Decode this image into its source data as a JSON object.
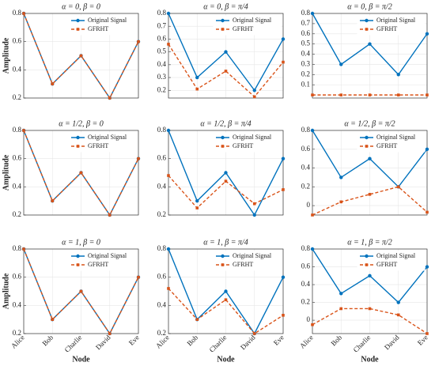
{
  "chart_data": [
    {
      "type": "line",
      "title": "α = 0, β = 0",
      "ylabel": "Amplitude",
      "categories": [
        null,
        null,
        null,
        null,
        null
      ],
      "series": [
        {
          "name": "Original Signal",
          "color": "#0072bd",
          "values": [
            0.8,
            0.3,
            0.5,
            0.2,
            0.6
          ]
        },
        {
          "name": "GFRHT",
          "color": "#d95319",
          "values": [
            0.8,
            0.3,
            0.5,
            0.2,
            0.6
          ]
        }
      ],
      "ylim": [
        0.2,
        0.8
      ],
      "yticks": [
        0.2,
        0.4,
        0.6,
        0.8
      ],
      "grid": true,
      "legend": "upper right"
    },
    {
      "type": "line",
      "title": "α = 0, β = π/4",
      "categories": [
        null,
        null,
        null,
        null,
        null
      ],
      "series": [
        {
          "name": "Original Signal",
          "color": "#0072bd",
          "values": [
            0.8,
            0.3,
            0.5,
            0.2,
            0.6
          ]
        },
        {
          "name": "GFRHT",
          "color": "#d95319",
          "values": [
            0.56,
            0.21,
            0.35,
            0.15,
            0.42
          ]
        }
      ],
      "ylim": [
        0.14,
        0.8
      ],
      "yticks": [
        0.2,
        0.3,
        0.4,
        0.5,
        0.6,
        0.7,
        0.8
      ],
      "grid": true,
      "legend": "upper right"
    },
    {
      "type": "line",
      "title": "α = 0, β = π/2",
      "categories": [
        null,
        null,
        null,
        null,
        null
      ],
      "series": [
        {
          "name": "Original Signal",
          "color": "#0072bd",
          "values": [
            0.8,
            0.3,
            0.5,
            0.2,
            0.6
          ]
        },
        {
          "name": "GFRHT",
          "color": "#d95319",
          "values": [
            0,
            0,
            0,
            0,
            0
          ]
        }
      ],
      "ylim": [
        -0.03,
        0.8
      ],
      "yticks": [
        0.1,
        0.2,
        0.3,
        0.4,
        0.5,
        0.6,
        0.7,
        0.8
      ],
      "grid": true,
      "legend": "upper right"
    },
    {
      "type": "line",
      "title": "α = 1/2, β = 0",
      "ylabel": "Amplitude",
      "categories": [
        null,
        null,
        null,
        null,
        null
      ],
      "series": [
        {
          "name": "Original Signal",
          "color": "#0072bd",
          "values": [
            0.8,
            0.3,
            0.5,
            0.2,
            0.6
          ]
        },
        {
          "name": "GFRHT",
          "color": "#d95319",
          "values": [
            0.8,
            0.3,
            0.5,
            0.2,
            0.6
          ]
        }
      ],
      "ylim": [
        0.2,
        0.8
      ],
      "yticks": [
        0.2,
        0.4,
        0.6,
        0.8
      ],
      "grid": true,
      "legend": "upper right"
    },
    {
      "type": "line",
      "title": "α = 1/2, β = π/4",
      "categories": [
        null,
        null,
        null,
        null,
        null
      ],
      "series": [
        {
          "name": "Original Signal",
          "color": "#0072bd",
          "values": [
            0.8,
            0.3,
            0.5,
            0.2,
            0.6
          ]
        },
        {
          "name": "GFRHT",
          "color": "#d95319",
          "values": [
            0.48,
            0.25,
            0.44,
            0.28,
            0.38
          ]
        }
      ],
      "ylim": [
        0.2,
        0.8
      ],
      "yticks": [
        0.2,
        0.4,
        0.6,
        0.8
      ],
      "grid": true,
      "legend": "upper right"
    },
    {
      "type": "line",
      "title": "α = 1/2, β = π/2",
      "categories": [
        null,
        null,
        null,
        null,
        null
      ],
      "series": [
        {
          "name": "Original Signal",
          "color": "#0072bd",
          "values": [
            0.8,
            0.3,
            0.5,
            0.2,
            0.6
          ]
        },
        {
          "name": "GFRHT",
          "color": "#d95319",
          "values": [
            -0.1,
            0.04,
            0.12,
            0.2,
            -0.07
          ]
        }
      ],
      "ylim": [
        -0.1,
        0.8
      ],
      "yticks": [
        0,
        0.2,
        0.4,
        0.6,
        0.8
      ],
      "grid": true,
      "legend": "upper right"
    },
    {
      "type": "line",
      "title": "α = 1, β = 0",
      "ylabel": "Amplitude",
      "xlabel": "Node",
      "categories": [
        "Alice",
        "Bob",
        "Charlie",
        "David",
        "Eve"
      ],
      "series": [
        {
          "name": "Original Signal",
          "color": "#0072bd",
          "values": [
            0.8,
            0.3,
            0.5,
            0.2,
            0.6
          ]
        },
        {
          "name": "GFRHT",
          "color": "#d95319",
          "values": [
            0.8,
            0.3,
            0.5,
            0.2,
            0.6
          ]
        }
      ],
      "ylim": [
        0.2,
        0.8
      ],
      "yticks": [
        0.2,
        0.4,
        0.6,
        0.8
      ],
      "grid": true,
      "legend": "upper right"
    },
    {
      "type": "line",
      "title": "α = 1, β = π/4",
      "xlabel": "Node",
      "categories": [
        "Alice",
        "Bob",
        "Charlie",
        "David",
        "Eve"
      ],
      "series": [
        {
          "name": "Original Signal",
          "color": "#0072bd",
          "values": [
            0.8,
            0.3,
            0.5,
            0.2,
            0.6
          ]
        },
        {
          "name": "GFRHT",
          "color": "#d95319",
          "values": [
            0.52,
            0.3,
            0.44,
            0.2,
            0.33
          ]
        }
      ],
      "ylim": [
        0.2,
        0.8
      ],
      "yticks": [
        0.2,
        0.4,
        0.6,
        0.8
      ],
      "grid": true,
      "legend": "upper right"
    },
    {
      "type": "line",
      "title": "α = 1, β = π/2",
      "xlabel": "Node",
      "categories": [
        "Alice",
        "Bob",
        "Charlie",
        "David",
        "Eve"
      ],
      "series": [
        {
          "name": "Original Signal",
          "color": "#0072bd",
          "values": [
            0.8,
            0.3,
            0.5,
            0.2,
            0.6
          ]
        },
        {
          "name": "GFRHT",
          "color": "#d95319",
          "values": [
            -0.05,
            0.13,
            0.13,
            0.06,
            -0.15
          ]
        }
      ],
      "ylim": [
        -0.15,
        0.8
      ],
      "yticks": [
        0,
        0.2,
        0.4,
        0.6,
        0.8
      ],
      "grid": true,
      "legend": "upper right"
    }
  ]
}
